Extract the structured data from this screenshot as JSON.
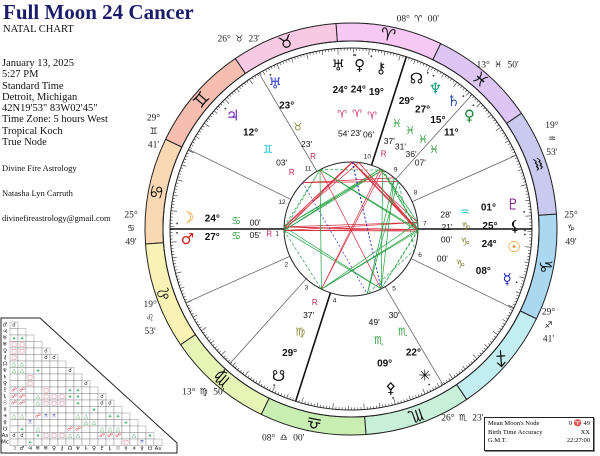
{
  "header": {
    "title": "Full Moon 24 Cancer",
    "subtitle": "NATAL CHART"
  },
  "details": [
    "January 13, 2025",
    "5:27 PM",
    "Standard Time",
    "Detroit, Michigan",
    "42N19'53\"  83W02'45\"",
    "Time Zone: 5 hours West",
    "Tropical Koch",
    "True Node"
  ],
  "credits": {
    "organization": "Divine Fire Astrology",
    "author": "Natasha Lyn Carruth",
    "email": "divinefireastrology@gmail.com"
  },
  "signs": [
    {
      "glyph": "♈",
      "icon": "aries-icon",
      "ring_color": "#f8c8f4",
      "text_color": "#c8306a"
    },
    {
      "glyph": "♉",
      "icon": "taurus-icon",
      "ring_color": "#f7c9e3",
      "text_color": "#8c8a3c"
    },
    {
      "glyph": "♊",
      "icon": "gemini-icon",
      "ring_color": "#f6bdb1",
      "text_color": "#22c0d2"
    },
    {
      "glyph": "♋",
      "icon": "cancer-icon",
      "ring_color": "#fad8b4",
      "text_color": "#34a044"
    },
    {
      "glyph": "♌",
      "icon": "leo-icon",
      "ring_color": "#f8f3b4",
      "text_color": "#c8306a"
    },
    {
      "glyph": "♍",
      "icon": "virgo-icon",
      "ring_color": "#e6f4b6",
      "text_color": "#8c8a3c"
    },
    {
      "glyph": "♎",
      "icon": "libra-icon",
      "ring_color": "#c9eeb2",
      "text_color": "#22c0d2"
    },
    {
      "glyph": "♏",
      "icon": "scorpio-icon",
      "ring_color": "#c8f0d8",
      "text_color": "#34a044"
    },
    {
      "glyph": "♐",
      "icon": "sagittarius-icon",
      "ring_color": "#c2eef2",
      "text_color": "#c8306a"
    },
    {
      "glyph": "♑",
      "icon": "capricorn-icon",
      "ring_color": "#aad8f0",
      "text_color": "#8c8a3c"
    },
    {
      "glyph": "♒",
      "icon": "aquarius-icon",
      "ring_color": "#cac9f0",
      "text_color": "#22c0d2"
    },
    {
      "glyph": "♓",
      "icon": "pisces-icon",
      "ring_color": "#ddc6f4",
      "text_color": "#34a044"
    }
  ],
  "house_cusps": [
    {
      "house": "1",
      "degree": "25°",
      "sign": 3,
      "minutes": "49'"
    },
    {
      "house": "2",
      "degree": "19°",
      "sign": 4,
      "minutes": "53'"
    },
    {
      "house": "3",
      "degree": "13°",
      "sign": 5,
      "minutes": "50'"
    },
    {
      "house": "4",
      "degree": "08°",
      "sign": 6,
      "minutes": "00'"
    },
    {
      "house": "5",
      "degree": "26°",
      "sign": 7,
      "minutes": "23'"
    },
    {
      "house": "6",
      "degree": "29°",
      "sign": 8,
      "minutes": "41'"
    },
    {
      "house": "7",
      "degree": "25°",
      "sign": 9,
      "minutes": "49'"
    },
    {
      "house": "8",
      "degree": "19°",
      "sign": 10,
      "minutes": "53'"
    },
    {
      "house": "9",
      "degree": "13°",
      "sign": 11,
      "minutes": "50'"
    },
    {
      "house": "10",
      "degree": "08°",
      "sign": 0,
      "minutes": "00'"
    },
    {
      "house": "11",
      "degree": "26°",
      "sign": 1,
      "minutes": "23'"
    },
    {
      "house": "12",
      "degree": "29°",
      "sign": 2,
      "minutes": "41'"
    }
  ],
  "planets": [
    {
      "icon": "moon-icon",
      "glyph": "☽",
      "color": "#e88a00",
      "degree": "24°",
      "sign": 3,
      "minutes": "00'",
      "retro": ""
    },
    {
      "icon": "mars-icon",
      "glyph": "♂",
      "color": "#d01818",
      "degree": "27°",
      "sign": 3,
      "minutes": "05'",
      "retro": "R"
    },
    {
      "icon": "jupiter-icon",
      "glyph": "♃",
      "color": "#6a22c4",
      "degree": "12°",
      "sign": 2,
      "minutes": "03'",
      "retro": "R"
    },
    {
      "icon": "uranus-icon",
      "glyph": "♅",
      "color": "#3442d2",
      "degree": "23°",
      "sign": 1,
      "minutes": "23'",
      "retro": "R"
    },
    {
      "icon": "eris-icon",
      "glyph": "♅",
      "color": "#111111",
      "degree": "24°",
      "sign": 0,
      "minutes": "54'",
      "retro": ""
    },
    {
      "icon": "venus-black-icon",
      "glyph": "♀",
      "color": "#111111",
      "degree": "24°",
      "sign": 0,
      "minutes": "23'",
      "retro": ""
    },
    {
      "icon": "chiron-icon",
      "glyph": "⚷",
      "color": "#111111",
      "degree": "19°",
      "sign": 0,
      "minutes": "06'",
      "retro": ""
    },
    {
      "icon": "north-node-icon",
      "glyph": "☊",
      "color": "#111111",
      "degree": "29°",
      "sign": 11,
      "minutes": "37'",
      "retro": "R"
    },
    {
      "icon": "neptune-icon",
      "glyph": "♆",
      "color": "#12a07e",
      "degree": "27°",
      "sign": 11,
      "minutes": "31'",
      "retro": ""
    },
    {
      "icon": "saturn-icon",
      "glyph": "♄",
      "color": "#3452b0",
      "degree": "15°",
      "sign": 11,
      "minutes": "36'",
      "retro": ""
    },
    {
      "icon": "venus-icon",
      "glyph": "♀",
      "color": "#128030",
      "degree": "11°",
      "sign": 11,
      "minutes": "07'",
      "retro": ""
    },
    {
      "icon": "pluto-icon",
      "glyph": "♇",
      "color": "#842284",
      "degree": "01°",
      "sign": 10,
      "minutes": "28'",
      "retro": ""
    },
    {
      "icon": "lilith-icon",
      "glyph": "⚸",
      "color": "#111111",
      "degree": "25°",
      "sign": 9,
      "minutes": "21'",
      "retro": ""
    },
    {
      "icon": "sun-icon",
      "glyph": "☉",
      "color": "#e88a00",
      "degree": "24°",
      "sign": 9,
      "minutes": "00'",
      "retro": ""
    },
    {
      "icon": "mercury-icon",
      "glyph": "☿",
      "color": "#2222c4",
      "degree": "08°",
      "sign": 9,
      "minutes": "00'",
      "retro": ""
    },
    {
      "icon": "juno-icon",
      "glyph": "✳",
      "color": "#111111",
      "degree": "22°",
      "sign": 7,
      "minutes": "30'",
      "retro": ""
    },
    {
      "icon": "pallas-icon",
      "glyph": "⚴",
      "color": "#111111",
      "degree": "09°",
      "sign": 7,
      "minutes": "49'",
      "retro": ""
    },
    {
      "icon": "south-node-icon",
      "glyph": "☋",
      "color": "#111111",
      "degree": "29°",
      "sign": 5,
      "minutes": "37'",
      "retro": "R"
    }
  ],
  "aspect_colors": {
    "hard": "#d83040",
    "soft": "#22a040",
    "minor": "#3030c8"
  },
  "info_box": [
    {
      "label": "Mean Moon's Node",
      "value": "0 ♈ 49"
    },
    {
      "label": "Birth Time Accuracy",
      "value": "XX"
    },
    {
      "label": "G.M.T.",
      "value": "22:27:00"
    }
  ]
}
